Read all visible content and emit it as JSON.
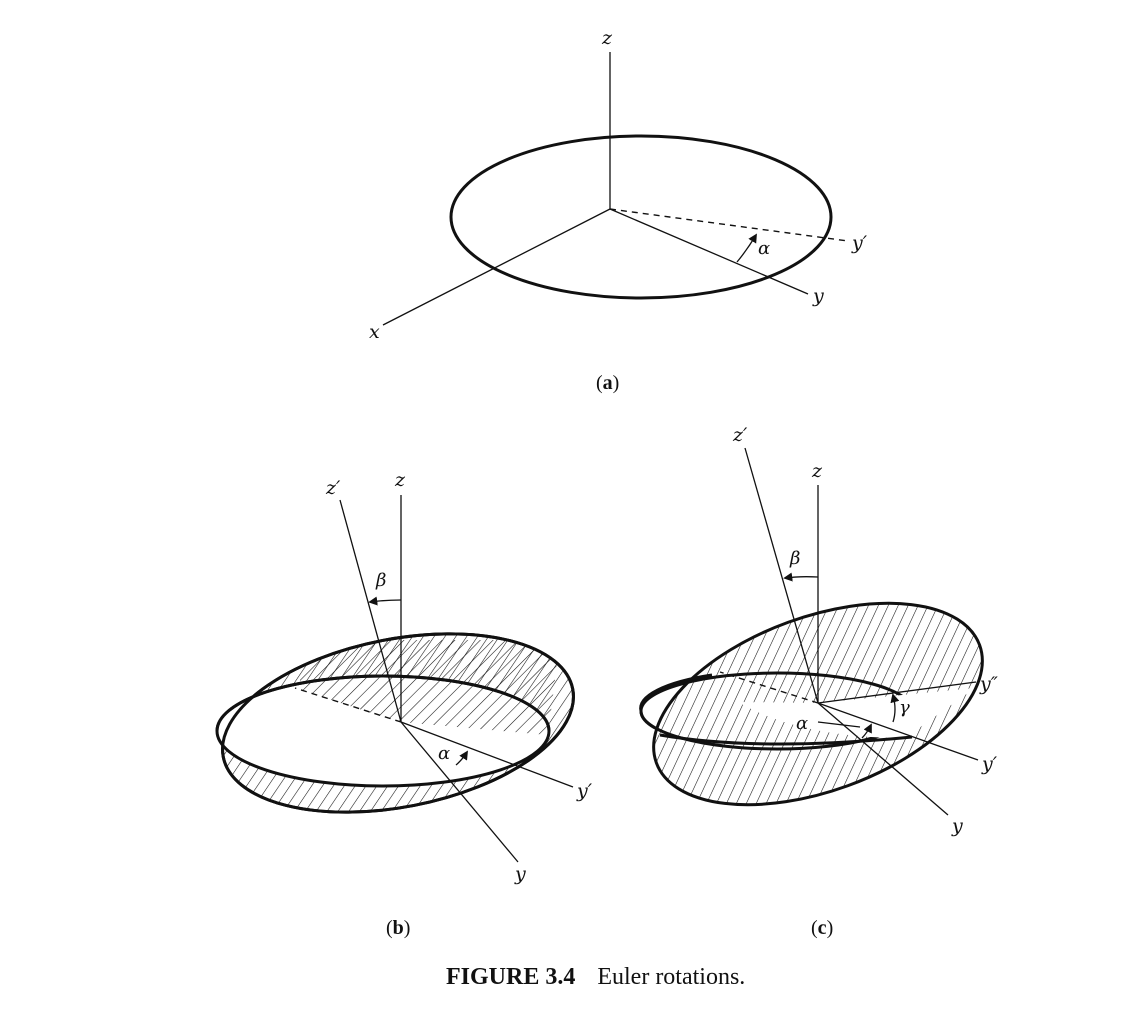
{
  "figure": {
    "caption_number": "FIGURE 3.4",
    "caption_text": "Euler rotations."
  },
  "panels": {
    "a": {
      "label": "(a)",
      "label_letter": "a",
      "axes": {
        "x": "x",
        "y": "y",
        "z": "z",
        "y_prime": "y′"
      },
      "angle": "α"
    },
    "b": {
      "label": "(b)",
      "label_letter": "b",
      "axes": {
        "y": "y",
        "z": "z",
        "z_prime": "z′",
        "y_prime": "y′"
      },
      "angles": {
        "beta": "β",
        "alpha": "α"
      }
    },
    "c": {
      "label": "(c)",
      "label_letter": "c",
      "axes": {
        "y": "y",
        "z": "z",
        "z_prime": "z′",
        "y_prime": "y′",
        "y_double_prime": "y″"
      },
      "angles": {
        "beta": "β",
        "alpha": "α",
        "gamma": "γ"
      }
    }
  },
  "colors": {
    "ink": "#111111",
    "background": "#ffffff"
  }
}
